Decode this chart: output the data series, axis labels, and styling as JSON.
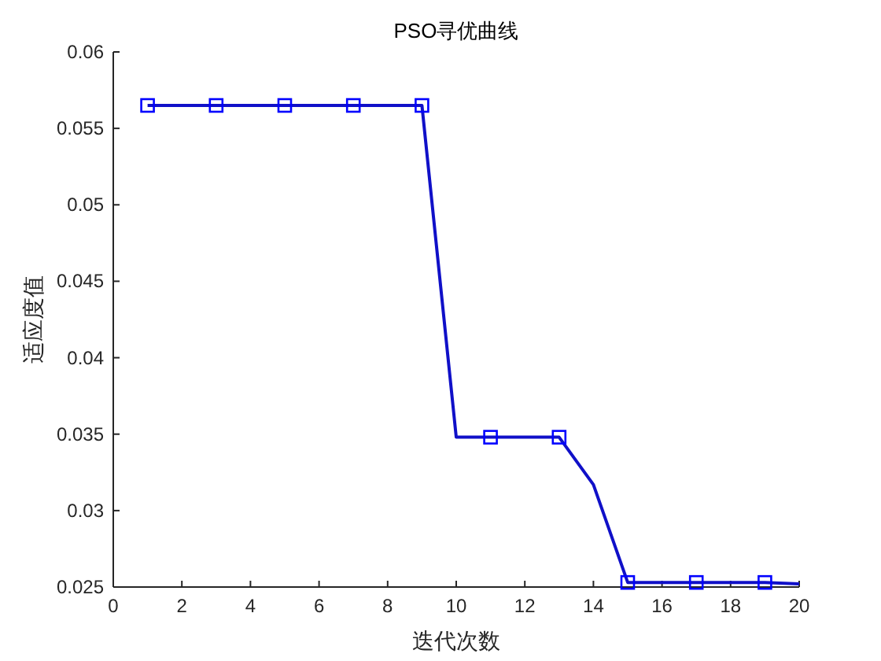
{
  "chart_data": {
    "type": "line",
    "title": "PSO寻优曲线",
    "xlabel": "迭代次数",
    "ylabel": "适应度值",
    "x": [
      1,
      2,
      3,
      4,
      5,
      6,
      7,
      8,
      9,
      10,
      11,
      12,
      13,
      14,
      15,
      16,
      17,
      18,
      19,
      20
    ],
    "series": [
      {
        "color": "#1010c8",
        "values": [
          0.0565,
          0.0565,
          0.0565,
          0.0565,
          0.0565,
          0.0565,
          0.0565,
          0.0565,
          0.0565,
          0.0348,
          0.0348,
          0.0348,
          0.0348,
          0.0317,
          0.0253,
          0.0253,
          0.0253,
          0.0253,
          0.0253,
          0.0252
        ]
      }
    ],
    "xlim": [
      0,
      20
    ],
    "ylim": [
      0.025,
      0.06
    ],
    "xticks": [
      0,
      2,
      4,
      6,
      8,
      10,
      12,
      14,
      16,
      18,
      20
    ],
    "yticks": [
      0.025,
      0.03,
      0.035,
      0.04,
      0.045,
      0.05,
      0.055,
      0.06
    ],
    "marker": "square",
    "line_style": "solid",
    "grid": false
  }
}
